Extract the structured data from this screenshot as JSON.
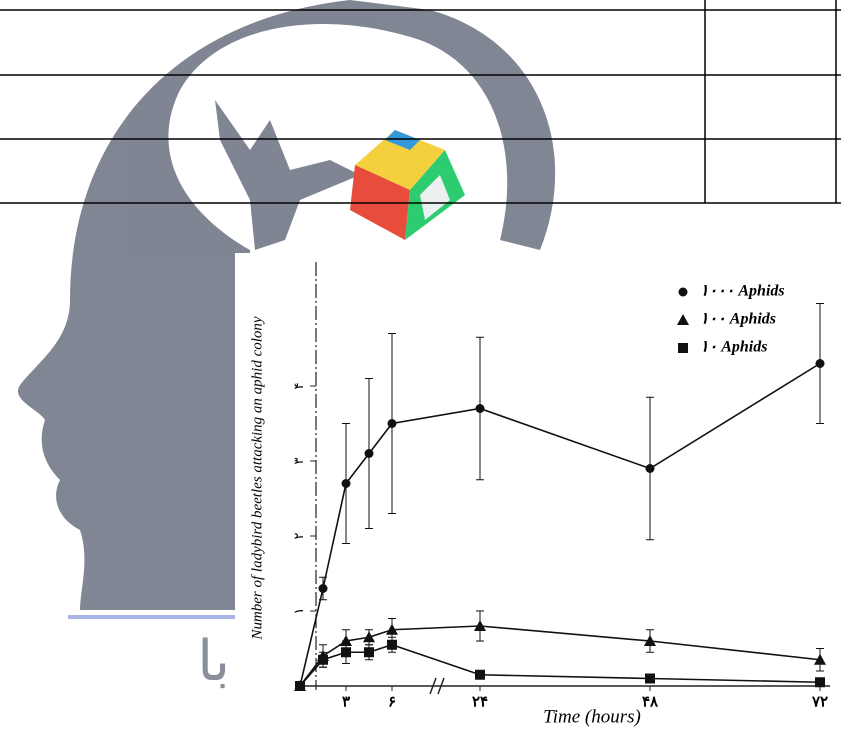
{
  "watermark_text": "با",
  "chart_data": {
    "type": "line",
    "xlabel": "Time (hours)",
    "ylabel": "Number of ladybird beetles attacking an aphid colony",
    "x": [
      0,
      1.5,
      3,
      4.5,
      6,
      24,
      48,
      72
    ],
    "xlim": [
      0,
      72
    ],
    "axis_break": [
      6,
      24
    ],
    "xticks": [
      {
        "value": 3,
        "label": "۳"
      },
      {
        "value": 6,
        "label": "۶"
      },
      {
        "value": 24,
        "label": "۲۴"
      },
      {
        "value": 48,
        "label": "۴۸"
      },
      {
        "value": 72,
        "label": "۷۲"
      }
    ],
    "ylim": [
      0,
      4.1
    ],
    "yticks": [
      {
        "value": 1,
        "label": "۱"
      },
      {
        "value": 2,
        "label": "۲"
      },
      {
        "value": 3,
        "label": "۳"
      },
      {
        "value": 4,
        "label": "۴"
      }
    ],
    "legend": "upper right",
    "series": [
      {
        "name": "۱۰۰۰ Aphids",
        "marker": "circle",
        "color": "#111111",
        "values": [
          0,
          1.3,
          2.7,
          3.1,
          3.5,
          3.7,
          2.9,
          4.3
        ],
        "errors": [
          0,
          0.15,
          0.8,
          1.0,
          1.2,
          0.95,
          0.95,
          0.8
        ]
      },
      {
        "name": "۱۰۰ Aphids",
        "marker": "triangle",
        "color": "#111111",
        "values": [
          0,
          0.4,
          0.6,
          0.65,
          0.75,
          0.8,
          0.6,
          0.35
        ],
        "errors": [
          0,
          0.15,
          0.15,
          0.1,
          0.15,
          0.2,
          0.15,
          0.15
        ]
      },
      {
        "name": "۱۰ Aphids",
        "marker": "square",
        "color": "#111111",
        "values": [
          0,
          0.35,
          0.45,
          0.45,
          0.55,
          0.15,
          0.1,
          0.05
        ],
        "errors": [
          0,
          0.1,
          0.15,
          0.1,
          0.1,
          0.05,
          0.05,
          0.05
        ]
      }
    ]
  }
}
